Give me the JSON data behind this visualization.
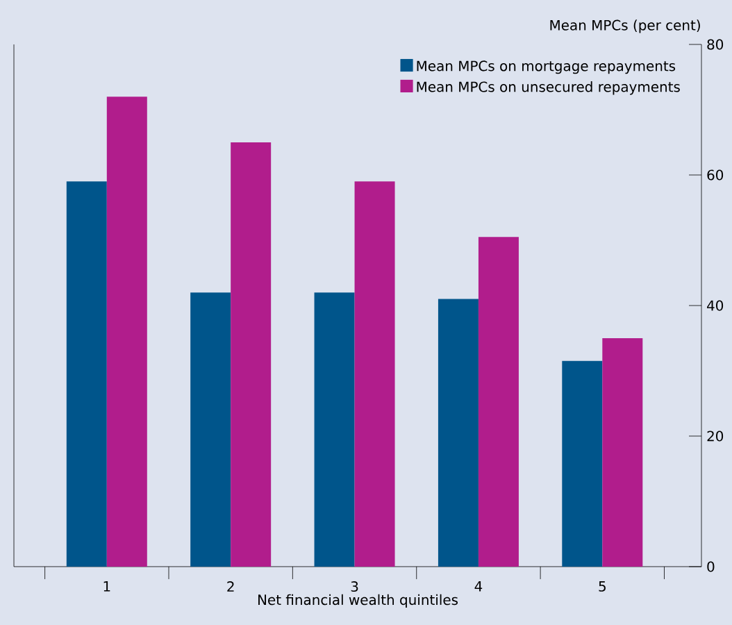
{
  "chart_data": {
    "type": "bar",
    "xlabel": "Net financial wealth quintiles",
    "ylabel": "Mean MPCs (per cent)",
    "categories": [
      "1",
      "2",
      "3",
      "4",
      "5"
    ],
    "series": [
      {
        "name": "Mean MPCs on mortgage repayments",
        "color": "#00558b",
        "values": [
          59,
          42,
          42,
          41,
          31.5
        ]
      },
      {
        "name": "Mean MPCs on unsecured repayments",
        "color": "#b11d8c",
        "values": [
          72,
          65,
          59,
          50.5,
          35
        ]
      }
    ],
    "ylim": [
      0,
      80
    ],
    "yticks": [
      0,
      20,
      40,
      60,
      80
    ],
    "legend": "top right",
    "grid": false
  }
}
